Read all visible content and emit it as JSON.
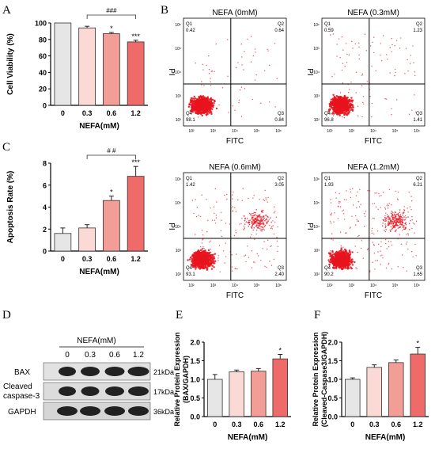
{
  "panel_letters": {
    "a": "A",
    "b": "B",
    "c": "C",
    "d": "D",
    "e": "E",
    "f": "F"
  },
  "colors": {
    "bars": [
      "#e6e6e6",
      "#fbd9d5",
      "#f39d97",
      "#ee6b69"
    ],
    "edge": "#333333",
    "dots": "#e8141e"
  },
  "chart_data": [
    {
      "id": "A",
      "type": "bar",
      "categories": [
        "0",
        "0.3",
        "0.6",
        "1.2"
      ],
      "values": [
        100,
        94,
        87,
        77
      ],
      "errors": [
        0,
        2,
        1.5,
        2
      ],
      "sig": [
        "",
        "",
        "*",
        "***"
      ],
      "ylabel": "Cell Viability (%)",
      "xlabel": "NEFA(mM)",
      "ylim": [
        0,
        100
      ],
      "yticks": [
        "0",
        "20",
        "40",
        "60",
        "80",
        "100"
      ],
      "bracket": "###"
    },
    {
      "id": "C",
      "type": "bar",
      "categories": [
        "0",
        "0.3",
        "0.6",
        "1.2"
      ],
      "values": [
        1.6,
        2.1,
        4.6,
        6.8
      ],
      "errors": [
        0.5,
        0.3,
        0.4,
        0.9
      ],
      "sig": [
        "",
        "",
        "*",
        "***"
      ],
      "ylabel": "Apoptosis Rate (%)",
      "xlabel": "NEFA(mM)",
      "ylim": [
        0,
        8
      ],
      "yticks": [
        "0",
        "2",
        "4",
        "6",
        "8"
      ],
      "bracket": "# #"
    },
    {
      "id": "E",
      "type": "bar",
      "categories": [
        "0",
        "0.3",
        "0.6",
        "1.2"
      ],
      "values": [
        1.0,
        1.2,
        1.22,
        1.55
      ],
      "errors": [
        0.13,
        0.05,
        0.07,
        0.12
      ],
      "sig": [
        "",
        "",
        "",
        "*"
      ],
      "ylabel1": "Relative Protein Expression",
      "ylabel2": "(BAX/GAPDH)",
      "xlabel": "NEFA(mM)",
      "ylim": [
        0,
        2
      ],
      "yticks": [
        "0.0",
        "0.5",
        "1.0",
        "1.5",
        "2.0"
      ]
    },
    {
      "id": "F",
      "type": "bar",
      "categories": [
        "0",
        "0.3",
        "0.6",
        "1.2"
      ],
      "values": [
        1.0,
        1.32,
        1.45,
        1.68
      ],
      "errors": [
        0.04,
        0.07,
        0.07,
        0.18
      ],
      "sig": [
        "",
        "",
        "",
        "*"
      ],
      "ylabel1": "Relative Protein Expression",
      "ylabel2": "(Cleaved-Caspase3/GAPDH)",
      "xlabel": "NEFA(mM)",
      "ylim": [
        0,
        2
      ],
      "yticks": [
        "0.0",
        "0.5",
        "1.0",
        "1.5",
        "2.0"
      ]
    },
    {
      "id": "B",
      "type": "scatter",
      "x_axis_label": "FITC",
      "y_axis_label": "PI",
      "axis_ticks": [
        "10²",
        "10³",
        "10⁴",
        "10⁵",
        "10⁶"
      ],
      "quadrant_names": [
        "Q1",
        "Q2",
        "Q3",
        "Q4"
      ],
      "plots": [
        {
          "title": "NEFA (0mM)",
          "q1": "0.42",
          "q2": "0.64",
          "q3": "0.84",
          "q4": "98.1"
        },
        {
          "title": "NEFA (0.3mM)",
          "q1": "0.59",
          "q2": "1.23",
          "q3": "1.41",
          "q4": "96.8"
        },
        {
          "title": "NEFA (0.6mM)",
          "q1": "1.42",
          "q2": "3.05",
          "q3": "2.40",
          "q4": "93.1"
        },
        {
          "title": "NEFA (1.2mM)",
          "q1": "1.93",
          "q2": "6.21",
          "q3": "1.65",
          "q4": "90.2"
        }
      ]
    }
  ],
  "blot": {
    "header": "NEFA(mM)",
    "lanes": [
      "0",
      "0.3",
      "0.6",
      "1.2"
    ],
    "rows": [
      {
        "label": "BAX",
        "size": "21kDa"
      },
      {
        "label_line1": "Cleaved",
        "label_line2": "caspase-3",
        "size": "17kDa"
      },
      {
        "label": "GAPDH",
        "size": "36kDa"
      }
    ]
  }
}
